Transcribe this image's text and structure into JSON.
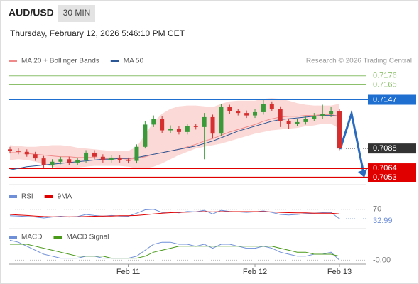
{
  "header": {
    "symbol": "AUD/USD",
    "interval": "30 MIN",
    "timestamp": "Thursday, February 12, 2026 5:46:10 PM CET"
  },
  "chart_data": [
    {
      "type": "candlestick",
      "source": "Research © 2026 Trading Central",
      "categories": [
        null,
        null,
        null,
        null,
        null,
        null,
        null,
        null,
        null,
        null,
        null,
        null,
        null,
        null,
        "Feb 11",
        null,
        null,
        null,
        null,
        null,
        null,
        null,
        null,
        null,
        null,
        null,
        null,
        null,
        null,
        "Feb 12",
        null,
        null,
        null,
        null,
        null,
        null,
        null,
        null,
        null,
        "Feb 13"
      ],
      "open": [
        0.7087,
        0.7085,
        0.7084,
        0.7081,
        0.7076,
        0.7068,
        0.7072,
        0.7075,
        0.7071,
        0.7074,
        0.7083,
        0.7078,
        0.7074,
        0.7077,
        0.7074,
        0.7073,
        0.709,
        0.7117,
        0.7124,
        0.711,
        0.7112,
        0.7108,
        0.7115,
        0.7114,
        0.7126,
        0.7106,
        0.7138,
        0.7133,
        0.7131,
        0.7128,
        0.7132,
        0.7142,
        0.7136,
        0.7121,
        0.7118,
        0.712,
        0.7124,
        0.7127,
        0.713,
        0.7133
      ],
      "high": [
        0.709,
        0.7088,
        0.7087,
        0.7084,
        0.7079,
        0.7075,
        0.7078,
        0.7078,
        0.7077,
        0.7086,
        0.7086,
        0.7081,
        0.708,
        0.708,
        0.7077,
        0.7093,
        0.7121,
        0.7128,
        0.7127,
        0.7116,
        0.7115,
        0.7118,
        0.7118,
        0.7131,
        0.7129,
        0.7142,
        0.7141,
        0.7136,
        0.7134,
        0.7136,
        0.7147,
        0.7145,
        0.7139,
        0.7124,
        0.7124,
        0.7127,
        0.7131,
        0.7141,
        0.7138,
        0.7136
      ],
      "low": [
        0.7082,
        0.7081,
        0.7078,
        0.7073,
        0.7065,
        0.7065,
        0.7069,
        0.7068,
        0.7068,
        0.7071,
        0.7075,
        0.7071,
        0.7071,
        0.7071,
        0.707,
        0.707,
        0.7088,
        0.7114,
        0.7107,
        0.7107,
        0.7105,
        0.7105,
        0.7111,
        0.7075,
        0.71,
        0.7103,
        0.713,
        0.7128,
        0.7125,
        0.7125,
        0.7129,
        0.7133,
        0.7114,
        0.7112,
        0.7115,
        0.7117,
        0.7121,
        0.7124,
        0.7126,
        0.7086
      ],
      "close": [
        0.7085,
        0.7084,
        0.7081,
        0.7076,
        0.7068,
        0.7072,
        0.7075,
        0.7071,
        0.7074,
        0.7083,
        0.7078,
        0.7074,
        0.7077,
        0.7074,
        0.7073,
        0.709,
        0.7117,
        0.7124,
        0.711,
        0.7112,
        0.7108,
        0.7115,
        0.7114,
        0.7126,
        0.7106,
        0.7138,
        0.7133,
        0.7131,
        0.7128,
        0.7132,
        0.7142,
        0.7136,
        0.7121,
        0.7118,
        0.712,
        0.7124,
        0.7127,
        0.713,
        0.7133,
        0.7088
      ],
      "up_color": "#3a9a3a",
      "down_color": "#d62f2f",
      "series": [
        {
          "name": "MA 20 + Bollinger Bands",
          "color": "#f08a8a",
          "values": [
            0.7083,
            0.7083,
            0.7082,
            0.7081,
            0.708,
            0.7079,
            0.7078,
            0.7078,
            0.7077,
            0.7077,
            0.7077,
            0.7076,
            0.7076,
            0.7076,
            0.7075,
            0.7076,
            0.7078,
            0.7081,
            0.7083,
            0.7085,
            0.7087,
            0.709,
            0.7093,
            0.7097,
            0.71,
            0.7104,
            0.7108,
            0.7111,
            0.7114,
            0.7117,
            0.7121,
            0.7124,
            0.7126,
            0.7127,
            0.7127,
            0.7128,
            0.7128,
            0.7129,
            0.7129,
            0.7127
          ]
        },
        {
          "name": "MA 50",
          "color": "#2b5797",
          "values": [
            0.7062,
            0.7064,
            0.7066,
            0.7067,
            0.7068,
            0.7069,
            0.707,
            0.7071,
            0.7072,
            0.7073,
            0.7074,
            0.7075,
            0.7075,
            0.7076,
            0.7076,
            0.7077,
            0.7079,
            0.7081,
            0.7083,
            0.7085,
            0.7087,
            0.7089,
            0.7091,
            0.7094,
            0.7097,
            0.7101,
            0.7105,
            0.7109,
            0.7112,
            0.7115,
            0.7118,
            0.7121,
            0.7123,
            0.7124,
            0.7125,
            0.7126,
            0.7127,
            0.7128,
            0.7128,
            0.7127
          ]
        }
      ],
      "bands": {
        "color": "#fbd9d6",
        "upper": [
          0.7092,
          0.7091,
          0.709,
          0.709,
          0.7091,
          0.7092,
          0.7092,
          0.7091,
          0.7089,
          0.7088,
          0.7087,
          0.7086,
          0.7085,
          0.7085,
          0.7085,
          0.709,
          0.7105,
          0.712,
          0.713,
          0.7136,
          0.7139,
          0.714,
          0.714,
          0.7139,
          0.7138,
          0.7142,
          0.7145,
          0.7146,
          0.7146,
          0.7146,
          0.7148,
          0.7149,
          0.7148,
          0.7146,
          0.7143,
          0.7141,
          0.714,
          0.714,
          0.714,
          0.7142
        ],
        "lower": [
          0.7074,
          0.7075,
          0.7074,
          0.7072,
          0.7069,
          0.7066,
          0.7064,
          0.7064,
          0.7065,
          0.7066,
          0.7067,
          0.7067,
          0.7067,
          0.7067,
          0.7066,
          0.7064,
          0.7064,
          0.7066,
          0.707,
          0.7075,
          0.708,
          0.7084,
          0.7088,
          0.709,
          0.7092,
          0.7094,
          0.7097,
          0.71,
          0.7103,
          0.7106,
          0.7108,
          0.711,
          0.7111,
          0.7112,
          0.7113,
          0.7115,
          0.7116,
          0.7118,
          0.7118,
          0.7112
        ]
      },
      "levels": [
        {
          "value": 0.7176,
          "color": "#8cc06b",
          "style": "text"
        },
        {
          "value": 0.7165,
          "color": "#8cc06b",
          "style": "text"
        },
        {
          "value": 0.7147,
          "color": "#1f6fd1",
          "style": "box"
        },
        {
          "value": 0.7064,
          "color": "#e00000",
          "style": "box"
        },
        {
          "value": 0.7053,
          "color": "#e00000",
          "style": "box"
        }
      ],
      "last_color": "#333333",
      "ylim": [
        0.7046,
        0.7199
      ]
    },
    {
      "type": "line",
      "series": [
        {
          "name": "RSI",
          "color": "#6f8fd8",
          "values": [
            45,
            44,
            42,
            40,
            36,
            40,
            43,
            40,
            42,
            50,
            46,
            43,
            46,
            44,
            43,
            55,
            68,
            70,
            58,
            60,
            56,
            62,
            60,
            66,
            52,
            66,
            62,
            60,
            58,
            60,
            64,
            58,
            50,
            48,
            50,
            53,
            55,
            57,
            58,
            32.99
          ]
        },
        {
          "name": "9MA",
          "color": "#e00000",
          "values": [
            50,
            48,
            46,
            44,
            42,
            41,
            41,
            41,
            41,
            42,
            43,
            44,
            44,
            45,
            45,
            46,
            49,
            52,
            55,
            57,
            58,
            59,
            60,
            61,
            60,
            61,
            61,
            61,
            61,
            61,
            61,
            60,
            58,
            57,
            56,
            56,
            55,
            55,
            55,
            52
          ]
        }
      ],
      "ylim": [
        0,
        100
      ],
      "yticks": [
        70
      ]
    },
    {
      "type": "line",
      "series": [
        {
          "name": "MACD",
          "color": "#6f8fd8",
          "values": [
            0.0008,
            0.0007,
            0.0005,
            0.0003,
            0.0001,
            0.0,
            -0.0001,
            -0.0001,
            -0.0001,
            0.0,
            0.0,
            -0.0001,
            -0.0001,
            -0.0001,
            -0.0001,
            0.0,
            0.0003,
            0.0006,
            0.0007,
            0.0007,
            0.0006,
            0.0006,
            0.0005,
            0.0006,
            0.0004,
            0.0006,
            0.0006,
            0.0005,
            0.0004,
            0.0004,
            0.0005,
            0.0004,
            0.0002,
            0.0001,
            0.0,
            0.0,
            0.0001,
            0.0001,
            0.0002,
            -0.0002
          ]
        },
        {
          "name": "MACD Signal",
          "color": "#4a9a1a",
          "values": [
            0.0006,
            0.0006,
            0.0006,
            0.0005,
            0.0004,
            0.0003,
            0.0002,
            0.0001,
            0.0,
            0.0,
            0.0,
            0.0,
            -0.0001,
            -0.0001,
            -0.0001,
            -0.0001,
            0.0,
            0.0002,
            0.0003,
            0.0004,
            0.0005,
            0.0005,
            0.0005,
            0.0005,
            0.0005,
            0.0005,
            0.0005,
            0.0005,
            0.0005,
            0.0005,
            0.0005,
            0.0005,
            0.0004,
            0.0003,
            0.0002,
            0.0002,
            0.0001,
            0.0001,
            0.0001,
            0.0
          ]
        }
      ],
      "ylim": [
        -0.0004,
        0.0011
      ],
      "yticks": [
        {
          "value": -0.0002,
          "label": "-0.00"
        }
      ]
    }
  ]
}
